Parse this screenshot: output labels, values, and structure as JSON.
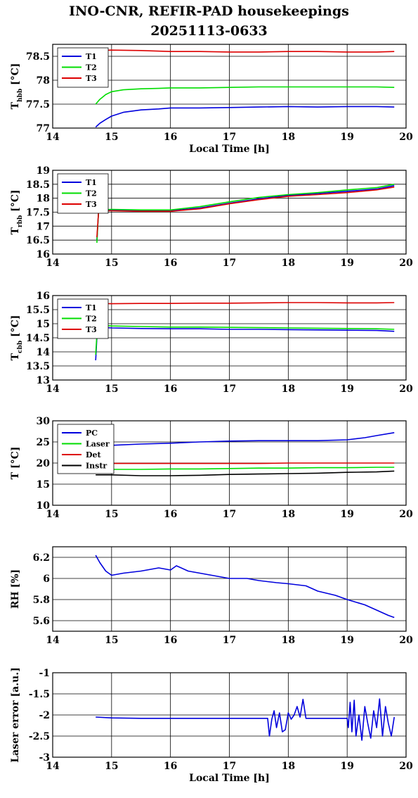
{
  "title_line1": "INO-CNR, REFIR-PAD housekeepings",
  "title_line2": "20251113-0633",
  "colors": {
    "blue": "#0000dd",
    "green": "#00dd00",
    "red": "#dd0000",
    "black": "#000000"
  },
  "chart_data": [
    {
      "type": "line",
      "ylabel_main": "T",
      "ylabel_sub": "hbb",
      "ylabel_unit": " [°C]",
      "xlabel": "Local Time [h]",
      "xlim": [
        14,
        20
      ],
      "ylim": [
        77,
        78.75
      ],
      "yticks": [
        77,
        77.5,
        78,
        78.5
      ],
      "ytick_labels": [
        "77",
        "77.5",
        "78",
        "78.5"
      ],
      "xticks": [
        14,
        15,
        16,
        17,
        18,
        19,
        20
      ],
      "legend_position": "top-left",
      "series": [
        {
          "name": "T1",
          "color": "#0000dd",
          "x": [
            14.73,
            14.8,
            14.9,
            15.0,
            15.2,
            15.5,
            15.8,
            16.0,
            16.5,
            17.0,
            17.5,
            18.0,
            18.5,
            19.0,
            19.5,
            19.8
          ],
          "y": [
            77.02,
            77.1,
            77.18,
            77.25,
            77.33,
            77.38,
            77.4,
            77.42,
            77.42,
            77.43,
            77.44,
            77.45,
            77.44,
            77.45,
            77.45,
            77.44
          ]
        },
        {
          "name": "T2",
          "color": "#00dd00",
          "x": [
            14.73,
            14.8,
            14.9,
            15.0,
            15.2,
            15.5,
            15.8,
            16.0,
            16.5,
            17.0,
            17.5,
            18.0,
            18.5,
            19.0,
            19.5,
            19.8
          ],
          "y": [
            77.5,
            77.6,
            77.7,
            77.76,
            77.8,
            77.82,
            77.83,
            77.84,
            77.84,
            77.85,
            77.86,
            77.86,
            77.86,
            77.86,
            77.86,
            77.85
          ]
        },
        {
          "name": "T3",
          "color": "#dd0000",
          "x": [
            14.73,
            15.0,
            15.5,
            16.0,
            16.5,
            17.0,
            17.5,
            18.0,
            18.5,
            19.0,
            19.5,
            19.8
          ],
          "y": [
            78.62,
            78.63,
            78.62,
            78.6,
            78.6,
            78.59,
            78.59,
            78.6,
            78.6,
            78.59,
            78.59,
            78.6
          ]
        }
      ]
    },
    {
      "type": "line",
      "ylabel_main": "T",
      "ylabel_sub": "rbb",
      "ylabel_unit": " [°C]",
      "xlabel": "",
      "xlim": [
        14,
        20
      ],
      "ylim": [
        16,
        19
      ],
      "yticks": [
        16,
        16.5,
        17,
        17.5,
        18,
        18.5,
        19
      ],
      "ytick_labels": [
        "16",
        "16.5",
        "17",
        "17.5",
        "18",
        "18.5",
        "19"
      ],
      "xticks": [
        14,
        15,
        16,
        17,
        18,
        19,
        20
      ],
      "legend_position": "top-left",
      "series": [
        {
          "name": "T1",
          "color": "#0000dd",
          "x": [
            14.75,
            14.78,
            15.0,
            15.5,
            16.0,
            16.5,
            17.0,
            17.5,
            18.0,
            18.5,
            19.0,
            19.5,
            19.8
          ],
          "y": [
            16.5,
            17.55,
            17.58,
            17.55,
            17.55,
            17.65,
            17.82,
            17.98,
            18.1,
            18.17,
            18.25,
            18.33,
            18.45
          ]
        },
        {
          "name": "T2",
          "color": "#00dd00",
          "x": [
            14.75,
            14.78,
            15.0,
            15.5,
            16.0,
            16.5,
            17.0,
            17.5,
            18.0,
            18.5,
            19.0,
            19.5,
            19.8
          ],
          "y": [
            16.4,
            17.58,
            17.6,
            17.58,
            17.58,
            17.7,
            17.87,
            18.03,
            18.13,
            18.2,
            18.3,
            18.38,
            18.5
          ]
        },
        {
          "name": "T3",
          "color": "#dd0000",
          "x": [
            14.75,
            14.78,
            15.0,
            15.5,
            16.0,
            16.5,
            17.0,
            17.5,
            18.0,
            18.5,
            19.0,
            19.5,
            19.8
          ],
          "y": [
            16.6,
            17.55,
            17.55,
            17.53,
            17.53,
            17.62,
            17.8,
            17.95,
            18.07,
            18.13,
            18.2,
            18.3,
            18.4
          ]
        }
      ]
    },
    {
      "type": "line",
      "ylabel_main": "T",
      "ylabel_sub": "cbb",
      "ylabel_unit": " [°C]",
      "xlabel": "",
      "xlim": [
        14,
        20
      ],
      "ylim": [
        13,
        16
      ],
      "yticks": [
        13,
        13.5,
        14,
        14.5,
        15,
        15.5,
        16
      ],
      "ytick_labels": [
        "13",
        "13.5",
        "14",
        "14.5",
        "15",
        "15.5",
        "16"
      ],
      "xticks": [
        14,
        15,
        16,
        17,
        18,
        19,
        20
      ],
      "legend_position": "top-left",
      "series": [
        {
          "name": "T1",
          "color": "#0000dd",
          "x": [
            14.73,
            14.76,
            15.0,
            15.5,
            16.0,
            16.5,
            17.0,
            17.5,
            18.0,
            18.5,
            19.0,
            19.5,
            19.8
          ],
          "y": [
            13.7,
            14.88,
            14.85,
            14.83,
            14.82,
            14.82,
            14.8,
            14.8,
            14.79,
            14.78,
            14.77,
            14.76,
            14.73
          ]
        },
        {
          "name": "T2",
          "color": "#00dd00",
          "x": [
            14.73,
            14.76,
            15.0,
            15.5,
            16.0,
            16.5,
            17.0,
            17.5,
            18.0,
            18.5,
            19.0,
            19.5,
            19.8
          ],
          "y": [
            13.9,
            14.95,
            14.92,
            14.9,
            14.88,
            14.88,
            14.87,
            14.86,
            14.85,
            14.84,
            14.83,
            14.82,
            14.8
          ]
        },
        {
          "name": "T3",
          "color": "#dd0000",
          "x": [
            14.73,
            15.0,
            15.5,
            16.0,
            16.5,
            17.0,
            17.5,
            18.0,
            18.5,
            19.0,
            19.5,
            19.8
          ],
          "y": [
            15.72,
            15.71,
            15.72,
            15.72,
            15.73,
            15.73,
            15.74,
            15.75,
            15.75,
            15.74,
            15.74,
            15.75
          ]
        }
      ]
    },
    {
      "type": "line",
      "ylabel_main": "T [°C]",
      "ylabel_sub": "",
      "ylabel_unit": "",
      "xlabel": "",
      "xlim": [
        14,
        20
      ],
      "ylim": [
        10,
        30
      ],
      "yticks": [
        10,
        15,
        20,
        25,
        30
      ],
      "ytick_labels": [
        "10",
        "15",
        "20",
        "25",
        "30"
      ],
      "xticks": [
        14,
        15,
        16,
        17,
        18,
        19,
        20
      ],
      "legend_position": "top-left",
      "series": [
        {
          "name": "PC",
          "color": "#0000dd",
          "x": [
            14.73,
            15.0,
            15.5,
            16.0,
            16.5,
            17.0,
            17.5,
            18.0,
            18.5,
            19.0,
            19.3,
            19.5,
            19.8
          ],
          "y": [
            23.7,
            24.2,
            24.5,
            24.7,
            25.0,
            25.2,
            25.3,
            25.3,
            25.3,
            25.5,
            26.0,
            26.5,
            27.2
          ]
        },
        {
          "name": "Laser",
          "color": "#00dd00",
          "x": [
            14.73,
            15.0,
            15.5,
            16.0,
            16.5,
            17.0,
            17.5,
            18.0,
            18.5,
            19.0,
            19.5,
            19.8
          ],
          "y": [
            18.5,
            18.5,
            18.5,
            18.6,
            18.6,
            18.7,
            18.8,
            18.8,
            18.9,
            18.9,
            19.0,
            19.0
          ]
        },
        {
          "name": "Det",
          "color": "#dd0000",
          "x": [
            14.73,
            15.0,
            15.5,
            16.0,
            16.5,
            17.0,
            17.5,
            18.0,
            18.5,
            19.0,
            19.5,
            19.8
          ],
          "y": [
            19.9,
            19.9,
            19.9,
            19.9,
            19.9,
            19.9,
            19.9,
            20.0,
            20.0,
            20.0,
            20.0,
            20.0
          ]
        },
        {
          "name": "Instr",
          "color": "#000000",
          "x": [
            14.73,
            15.0,
            15.5,
            16.0,
            16.5,
            17.0,
            17.5,
            18.0,
            18.5,
            19.0,
            19.5,
            19.8
          ],
          "y": [
            17.2,
            17.2,
            17.0,
            17.0,
            17.1,
            17.3,
            17.4,
            17.5,
            17.6,
            17.8,
            17.9,
            18.1
          ]
        }
      ]
    },
    {
      "type": "line",
      "ylabel_main": "RH [%]",
      "ylabel_sub": "",
      "ylabel_unit": "",
      "xlabel": "",
      "xlim": [
        14,
        20
      ],
      "ylim": [
        5.5,
        6.3
      ],
      "yticks": [
        5.6,
        5.8,
        6,
        6.2
      ],
      "ytick_labels": [
        "5.6",
        "5.8",
        "6",
        "6.2"
      ],
      "xticks": [
        14,
        15,
        16,
        17,
        18,
        19,
        20
      ],
      "series": [
        {
          "color": "#0000dd",
          "x": [
            14.73,
            14.8,
            14.9,
            15.0,
            15.2,
            15.5,
            15.8,
            16.0,
            16.1,
            16.3,
            16.5,
            16.8,
            17.0,
            17.3,
            17.5,
            17.8,
            18.0,
            18.3,
            18.5,
            18.8,
            19.0,
            19.3,
            19.5,
            19.7,
            19.8
          ],
          "y": [
            6.22,
            6.15,
            6.07,
            6.03,
            6.05,
            6.07,
            6.1,
            6.08,
            6.12,
            6.07,
            6.05,
            6.02,
            6.0,
            6.0,
            5.98,
            5.96,
            5.95,
            5.93,
            5.88,
            5.84,
            5.8,
            5.75,
            5.7,
            5.65,
            5.63
          ]
        }
      ]
    },
    {
      "type": "line",
      "ylabel_main": "Laser error [a.u.]",
      "ylabel_sub": "",
      "ylabel_unit": "",
      "xlabel": "Local Time [h]",
      "xlim": [
        14,
        20
      ],
      "ylim": [
        -3,
        -1
      ],
      "yticks": [
        -3,
        -2.5,
        -2,
        -1.5,
        -1
      ],
      "ytick_labels": [
        "-3",
        "-2.5",
        "-2",
        "-1.5",
        "-1"
      ],
      "xticks": [
        14,
        15,
        16,
        17,
        18,
        19,
        20
      ],
      "series": [
        {
          "color": "#0000dd",
          "x": [
            14.73,
            15.0,
            15.5,
            16.0,
            16.5,
            17.0,
            17.5,
            17.65,
            17.68,
            17.72,
            17.76,
            17.8,
            17.85,
            17.9,
            17.95,
            18.0,
            18.05,
            18.1,
            18.15,
            18.2,
            18.25,
            18.3,
            18.5,
            18.8,
            19.0,
            19.02,
            19.05,
            19.08,
            19.12,
            19.15,
            19.2,
            19.25,
            19.3,
            19.35,
            19.4,
            19.45,
            19.5,
            19.55,
            19.6,
            19.65,
            19.7,
            19.75,
            19.8
          ],
          "y": [
            -2.05,
            -2.07,
            -2.08,
            -2.08,
            -2.08,
            -2.08,
            -2.08,
            -2.08,
            -2.5,
            -2.1,
            -1.9,
            -2.3,
            -1.95,
            -2.4,
            -2.35,
            -1.95,
            -2.1,
            -2.0,
            -1.8,
            -2.05,
            -1.63,
            -2.08,
            -2.08,
            -2.08,
            -2.08,
            -2.3,
            -1.7,
            -2.4,
            -1.65,
            -2.5,
            -2.0,
            -2.6,
            -1.8,
            -2.2,
            -2.55,
            -1.9,
            -2.3,
            -1.62,
            -2.5,
            -1.8,
            -2.2,
            -2.5,
            -2.05
          ]
        }
      ]
    }
  ]
}
